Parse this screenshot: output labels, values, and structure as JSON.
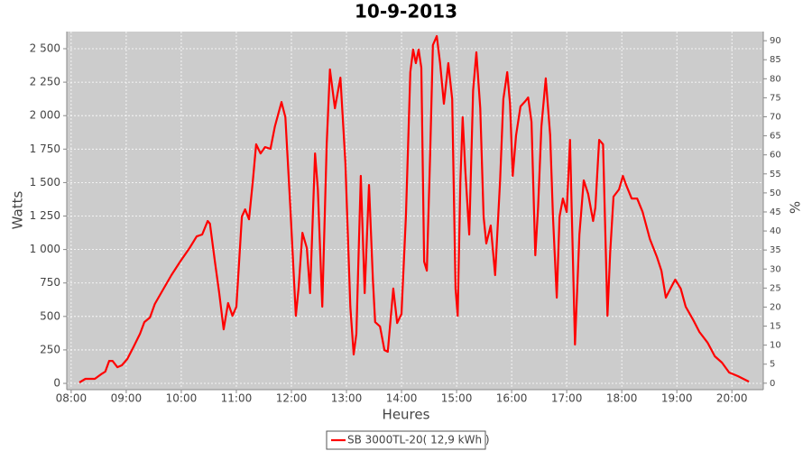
{
  "chart_data": {
    "type": "line",
    "title": "10-9-2013",
    "xlabel": "Heures",
    "ylabel": "Watts",
    "y2label": "%",
    "xlim": [
      7.92,
      20.57
    ],
    "ylim": [
      -47,
      2628
    ],
    "y2lim": [
      -1.7,
      92.4
    ],
    "xticks": [
      {
        "value": 8,
        "label": "08:00"
      },
      {
        "value": 9,
        "label": "09:00"
      },
      {
        "value": 10,
        "label": "10:00"
      },
      {
        "value": 11,
        "label": "11:00"
      },
      {
        "value": 12,
        "label": "12:00"
      },
      {
        "value": 13,
        "label": "13:00"
      },
      {
        "value": 14,
        "label": "14:00"
      },
      {
        "value": 15,
        "label": "15:00"
      },
      {
        "value": 16,
        "label": "16:00"
      },
      {
        "value": 17,
        "label": "17:00"
      },
      {
        "value": 18,
        "label": "18:00"
      },
      {
        "value": 19,
        "label": "19:00"
      },
      {
        "value": 20,
        "label": "20:00"
      }
    ],
    "yticks": [
      0,
      250,
      500,
      750,
      {
        "value": 1000,
        "label": "1 000"
      },
      {
        "value": 1250,
        "label": "1 250"
      },
      {
        "value": 1500,
        "label": "1 500"
      },
      {
        "value": 1750,
        "label": "1 750"
      },
      {
        "value": 2000,
        "label": "2 000"
      },
      {
        "value": 2250,
        "label": "2 250"
      },
      {
        "value": 2500,
        "label": "2 500"
      }
    ],
    "y2ticks": [
      0,
      5,
      10,
      15,
      20,
      25,
      30,
      35,
      40,
      45,
      50,
      55,
      60,
      65,
      70,
      75,
      80,
      85,
      90
    ],
    "grid": true,
    "legend": "bottom",
    "series": [
      {
        "name": "SB 3000TL-20( 12,9 kWh )",
        "color": "#ff0000",
        "x": [
          8.15,
          8.26,
          8.43,
          8.54,
          8.62,
          8.69,
          8.75,
          8.84,
          8.92,
          9.02,
          9.13,
          9.25,
          9.33,
          9.43,
          9.52,
          9.66,
          9.82,
          9.98,
          10.15,
          10.28,
          10.38,
          10.48,
          10.52,
          10.61,
          10.69,
          10.77,
          10.85,
          10.93,
          11.0,
          11.1,
          11.16,
          11.23,
          11.3,
          11.36,
          11.44,
          11.52,
          11.62,
          11.7,
          11.82,
          11.89,
          11.98,
          12.08,
          12.13,
          12.2,
          12.28,
          12.34,
          12.43,
          12.48,
          12.56,
          12.64,
          12.7,
          12.79,
          12.89,
          12.98,
          13.07,
          13.13,
          13.18,
          13.26,
          13.33,
          13.41,
          13.48,
          13.52,
          13.61,
          13.69,
          13.75,
          13.85,
          13.92,
          14.0,
          14.08,
          14.16,
          14.21,
          14.26,
          14.31,
          14.36,
          14.41,
          14.46,
          14.52,
          14.57,
          14.64,
          14.7,
          14.77,
          14.85,
          14.92,
          14.98,
          15.02,
          15.07,
          15.11,
          15.16,
          15.23,
          15.3,
          15.36,
          15.43,
          15.49,
          15.54,
          15.62,
          15.7,
          15.79,
          15.85,
          15.92,
          15.97,
          16.02,
          16.08,
          16.16,
          16.25,
          16.3,
          16.36,
          16.43,
          16.48,
          16.54,
          16.62,
          16.7,
          16.75,
          16.82,
          16.87,
          16.93,
          17.0,
          17.06,
          17.15,
          17.23,
          17.31,
          17.39,
          17.48,
          17.52,
          17.59,
          17.66,
          17.74,
          17.79,
          17.85,
          17.95,
          18.02,
          18.08,
          18.18,
          18.28,
          18.38,
          18.51,
          18.64,
          18.72,
          18.8,
          18.9,
          18.97,
          19.07,
          19.16,
          19.3,
          19.41,
          19.56,
          19.69,
          19.82,
          19.95,
          20.11,
          20.31
        ],
        "values": [
          7,
          34,
          34,
          67,
          88,
          168,
          168,
          121,
          135,
          182,
          270,
          371,
          458,
          492,
          593,
          694,
          809,
          910,
          1011,
          1098,
          1112,
          1213,
          1193,
          910,
          674,
          404,
          600,
          505,
          573,
          1247,
          1300,
          1226,
          1516,
          1786,
          1718,
          1765,
          1752,
          1920,
          2102,
          1988,
          1314,
          505,
          708,
          1125,
          1011,
          674,
          1718,
          1449,
          573,
          1786,
          2345,
          2055,
          2284,
          1651,
          573,
          216,
          371,
          1550,
          674,
          1482,
          775,
          458,
          425,
          249,
          236,
          708,
          451,
          519,
          1247,
          2325,
          2493,
          2392,
          2493,
          2358,
          910,
          842,
          1718,
          2527,
          2594,
          2392,
          2089,
          2392,
          2123,
          708,
          505,
          1516,
          1988,
          1584,
          1112,
          2190,
          2473,
          2055,
          1247,
          1045,
          1179,
          809,
          1516,
          2123,
          2325,
          2089,
          1550,
          1853,
          2069,
          2109,
          2136,
          1954,
          957,
          1314,
          1920,
          2278,
          1853,
          1247,
          640,
          1247,
          1381,
          1280,
          1819,
          290,
          1112,
          1516,
          1415,
          1213,
          1314,
          1819,
          1786,
          505,
          977,
          1395,
          1449,
          1550,
          1482,
          1381,
          1381,
          1280,
          1078,
          943,
          842,
          640,
          721,
          775,
          708,
          573,
          472,
          384,
          303,
          202,
          155,
          81,
          54,
          13
        ]
      }
    ]
  }
}
